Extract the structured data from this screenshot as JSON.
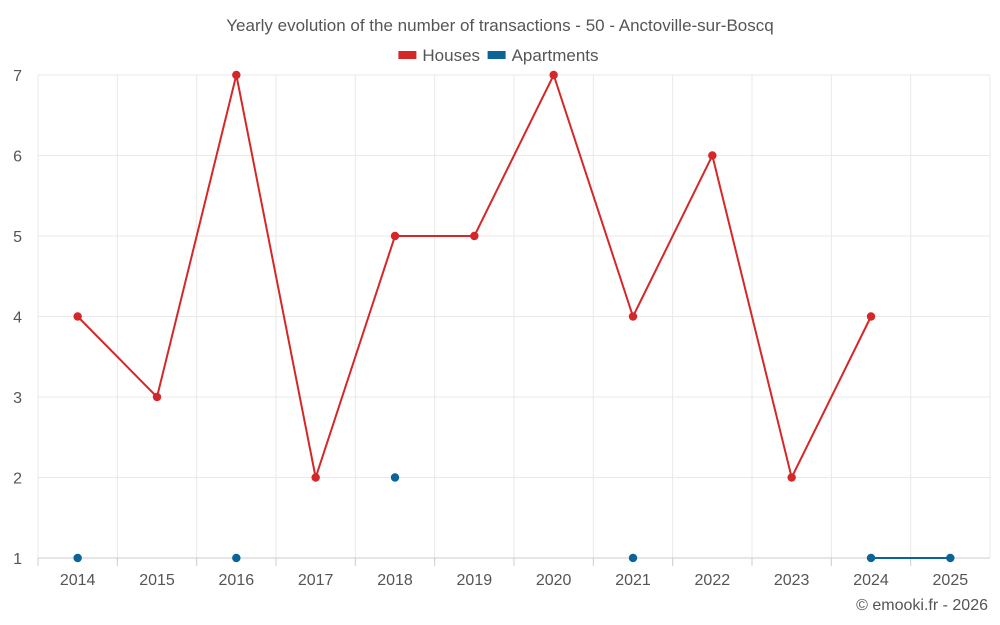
{
  "chart_data": {
    "type": "line",
    "title": "Yearly evolution of the number of transactions - 50 - Anctoville-sur-Boscq",
    "categories": [
      "2014",
      "2015",
      "2016",
      "2017",
      "2018",
      "2019",
      "2020",
      "2021",
      "2022",
      "2023",
      "2024",
      "2025"
    ],
    "series": [
      {
        "name": "Houses",
        "color": "#d62728",
        "values": [
          4,
          3,
          7,
          2,
          5,
          5,
          7,
          4,
          6,
          2,
          4,
          null
        ]
      },
      {
        "name": "Apartments",
        "color": "#0a6496",
        "values": [
          1,
          null,
          1,
          null,
          2,
          null,
          null,
          1,
          null,
          null,
          1,
          1
        ]
      }
    ],
    "yticks": [
      1,
      2,
      3,
      4,
      5,
      6,
      7
    ],
    "ylim": [
      1,
      7
    ],
    "grid": true,
    "legend": "top-center",
    "credit": "© emooki.fr - 2026"
  }
}
